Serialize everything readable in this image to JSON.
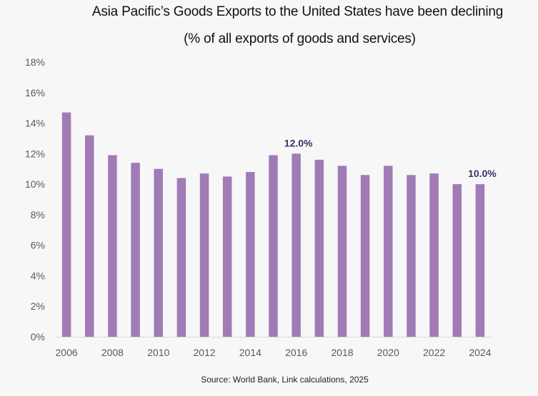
{
  "chart_data": {
    "type": "bar",
    "title": "Asia Pacific’s Goods Exports to the United States have been declining",
    "subtitle": "(% of all exports of goods and services)",
    "categories": [
      "2006",
      "2007",
      "2008",
      "2009",
      "2010",
      "2011",
      "2012",
      "2013",
      "2014",
      "2015",
      "2016",
      "2017",
      "2018",
      "2019",
      "2020",
      "2021",
      "2022",
      "2023",
      "2024"
    ],
    "values": [
      14.7,
      13.2,
      11.9,
      11.4,
      11.0,
      10.4,
      10.7,
      10.5,
      10.8,
      11.9,
      12.0,
      11.6,
      11.2,
      10.6,
      11.2,
      10.6,
      10.7,
      10.0,
      10.0
    ],
    "data_labels": [
      {
        "category": "2016",
        "text": "12.0%"
      },
      {
        "category": "2024",
        "text": "10.0%"
      }
    ],
    "xtick_labels": [
      "2006",
      "2008",
      "2010",
      "2012",
      "2014",
      "2016",
      "2018",
      "2020",
      "2022",
      "2024"
    ],
    "ytick_labels": [
      "0%",
      "2%",
      "4%",
      "6%",
      "8%",
      "10%",
      "12%",
      "14%",
      "16%",
      "18%"
    ],
    "yticks": [
      0,
      2,
      4,
      6,
      8,
      10,
      12,
      14,
      16,
      18
    ],
    "ylim": [
      0,
      18
    ],
    "xlabel": "",
    "ylabel": "",
    "grid": false,
    "bar_color": "#a07bb5",
    "label_color": "#3a3368"
  },
  "source": "Source:  World Bank, Link calculations, 2025"
}
